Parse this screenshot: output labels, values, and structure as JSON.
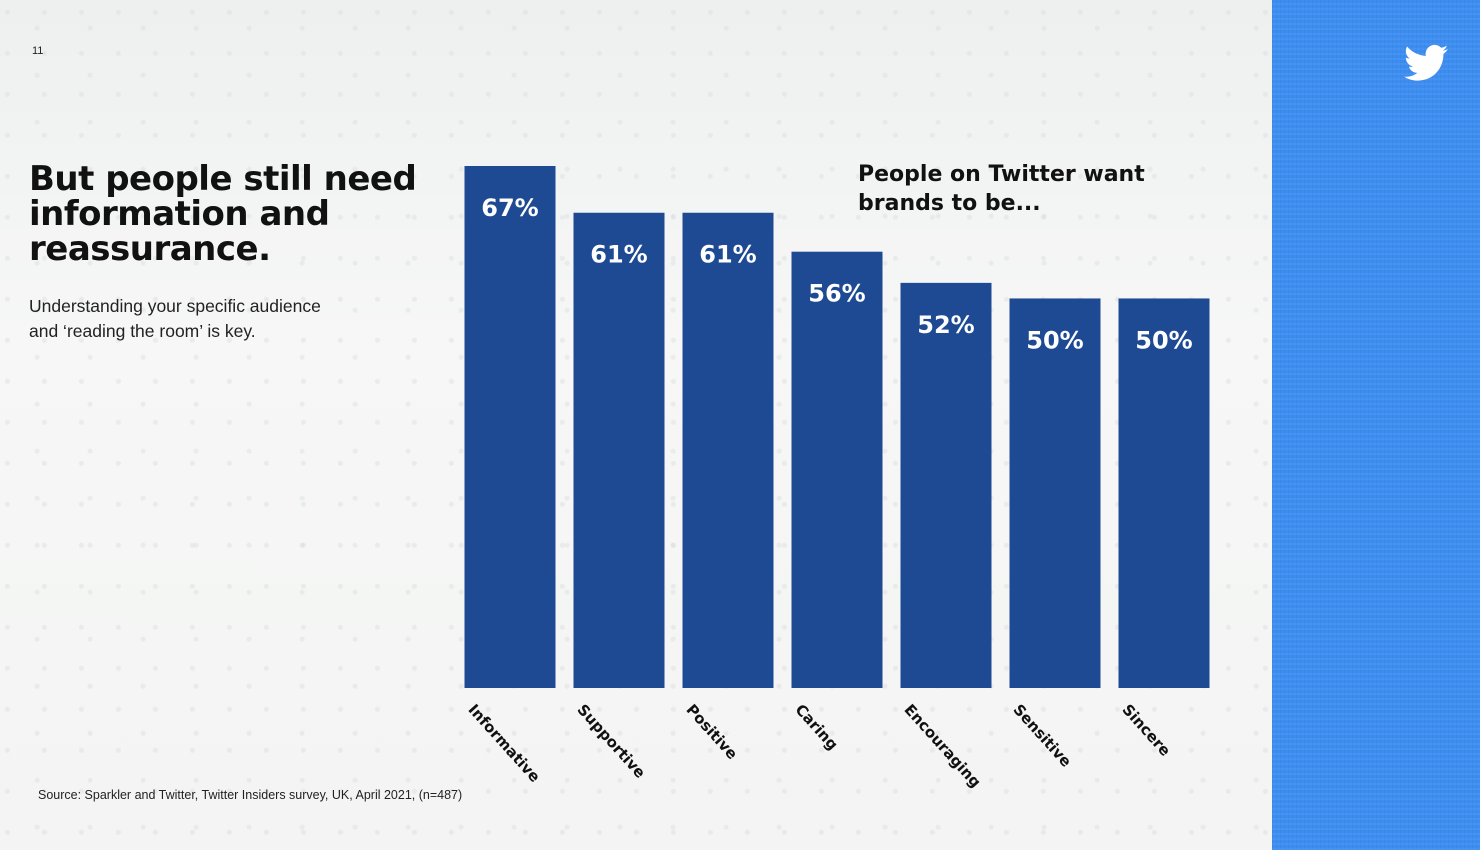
{
  "page": {
    "number": "11",
    "headline": "But people still need information and reassurance.",
    "subtext": "Understanding your specific audience and ‘reading the room’ is key.",
    "source": "Source: Sparkler and Twitter, Twitter Insiders survey, UK, April 2021, (n=487)",
    "logo_icon": "twitter-bird-icon"
  },
  "colors": {
    "bar": "#1e4a93",
    "side_panel": "#3d8df0",
    "text": "#111111"
  },
  "chart_data": {
    "type": "bar",
    "title": "People on Twitter want brands to be...",
    "categories": [
      "Informative",
      "Supportive",
      "Positive",
      "Caring",
      "Encouraging",
      "Sensitive",
      "Sincere"
    ],
    "values": [
      67,
      61,
      61,
      56,
      52,
      50,
      50
    ],
    "value_labels": [
      "67%",
      "61%",
      "61%",
      "56%",
      "52%",
      "50%",
      "50%"
    ],
    "xlabel": "",
    "ylabel": "",
    "ylim": [
      0,
      67
    ],
    "grid": false,
    "legend": "none"
  }
}
